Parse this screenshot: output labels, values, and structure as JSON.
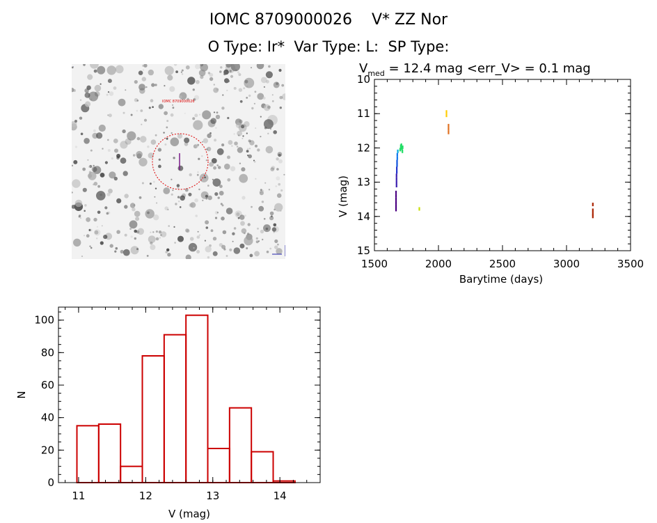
{
  "header": {
    "line1": "IOMC 8709000026    V* ZZ Nor",
    "line2": "O Type: Ir*  Var Type: L:  SP Type:"
  },
  "sky_image": {
    "description_hidden": false,
    "circle_color": "#dd0000",
    "tiny_label": "IOMC 8709000026"
  },
  "colors": {
    "axis": "#000000",
    "hist_bars": "#cc0000"
  },
  "chart_data": [
    {
      "type": "scatter",
      "title_prefix": "V",
      "title_sub": "med",
      "title_rest": " = 12.4 mag <err_V> = 0.1 mag",
      "xlabel": "Barytime (days)",
      "ylabel": "V (mag)",
      "xlim": [
        1500,
        3500
      ],
      "ylim": [
        15,
        10
      ],
      "y_inverted": true,
      "xticks": [
        1500,
        2000,
        2500,
        3000,
        3500
      ],
      "yticks": [
        10,
        11,
        12,
        13,
        14,
        15
      ],
      "points": [
        {
          "x": 1668,
          "y": 13.8,
          "color": "#4b0082"
        },
        {
          "x": 1668,
          "y": 13.7,
          "color": "#4b0082"
        },
        {
          "x": 1668,
          "y": 13.6,
          "color": "#4b0082"
        },
        {
          "x": 1668,
          "y": 13.5,
          "color": "#4b0082"
        },
        {
          "x": 1668,
          "y": 13.4,
          "color": "#4b0082"
        },
        {
          "x": 1668,
          "y": 13.3,
          "color": "#4b0082"
        },
        {
          "x": 1672,
          "y": 13.1,
          "color": "#3a1fb0"
        },
        {
          "x": 1672,
          "y": 13.0,
          "color": "#3a1fb0"
        },
        {
          "x": 1672,
          "y": 12.9,
          "color": "#3a1fb0"
        },
        {
          "x": 1672,
          "y": 12.8,
          "color": "#3a1fb0"
        },
        {
          "x": 1674,
          "y": 12.7,
          "color": "#2233cc"
        },
        {
          "x": 1674,
          "y": 12.6,
          "color": "#2233cc"
        },
        {
          "x": 1676,
          "y": 12.5,
          "color": "#1155dd"
        },
        {
          "x": 1676,
          "y": 12.4,
          "color": "#1155dd"
        },
        {
          "x": 1678,
          "y": 12.3,
          "color": "#1177ee"
        },
        {
          "x": 1678,
          "y": 12.2,
          "color": "#1177ee"
        },
        {
          "x": 1682,
          "y": 12.1,
          "color": "#00aadd"
        },
        {
          "x": 1700,
          "y": 12.05,
          "color": "#22dd66"
        },
        {
          "x": 1705,
          "y": 11.95,
          "color": "#22dd66"
        },
        {
          "x": 1710,
          "y": 11.92,
          "color": "#22dd66"
        },
        {
          "x": 1712,
          "y": 12.0,
          "color": "#22dd66"
        },
        {
          "x": 1715,
          "y": 12.05,
          "color": "#22dd66"
        },
        {
          "x": 1718,
          "y": 12.1,
          "color": "#22dd66"
        },
        {
          "x": 1720,
          "y": 11.98,
          "color": "#22dd66"
        },
        {
          "x": 1850,
          "y": 13.78,
          "color": "#c8e000"
        },
        {
          "x": 2062,
          "y": 10.95,
          "color": "#ffcc00"
        },
        {
          "x": 2062,
          "y": 11.05,
          "color": "#ffcc00"
        },
        {
          "x": 2078,
          "y": 11.35,
          "color": "#e07020"
        },
        {
          "x": 2078,
          "y": 11.45,
          "color": "#e07020"
        },
        {
          "x": 2078,
          "y": 11.55,
          "color": "#e07020"
        },
        {
          "x": 3205,
          "y": 13.65,
          "color": "#aa2200"
        },
        {
          "x": 3205,
          "y": 13.82,
          "color": "#aa2200"
        },
        {
          "x": 3205,
          "y": 13.92,
          "color": "#aa2200"
        },
        {
          "x": 3205,
          "y": 14.0,
          "color": "#aa2200"
        }
      ]
    },
    {
      "type": "bar",
      "subtype": "histogram",
      "xlabel": "V (mag)",
      "ylabel": "N",
      "xlim": [
        10.7,
        14.6
      ],
      "ylim": [
        0,
        108
      ],
      "xticks": [
        11,
        12,
        13,
        14
      ],
      "yticks": [
        0,
        20,
        40,
        60,
        80,
        100
      ],
      "bins": [
        {
          "x0": 10.975,
          "x1": 11.3,
          "count": 35
        },
        {
          "x0": 11.3,
          "x1": 11.625,
          "count": 36
        },
        {
          "x0": 11.625,
          "x1": 11.95,
          "count": 10
        },
        {
          "x0": 11.95,
          "x1": 12.275,
          "count": 78
        },
        {
          "x0": 12.275,
          "x1": 12.6,
          "count": 91
        },
        {
          "x0": 12.6,
          "x1": 12.925,
          "count": 103
        },
        {
          "x0": 12.925,
          "x1": 13.25,
          "count": 21
        },
        {
          "x0": 13.25,
          "x1": 13.575,
          "count": 46
        },
        {
          "x0": 13.575,
          "x1": 13.9,
          "count": 19
        },
        {
          "x0": 13.9,
          "x1": 14.225,
          "count": 1
        }
      ]
    }
  ]
}
